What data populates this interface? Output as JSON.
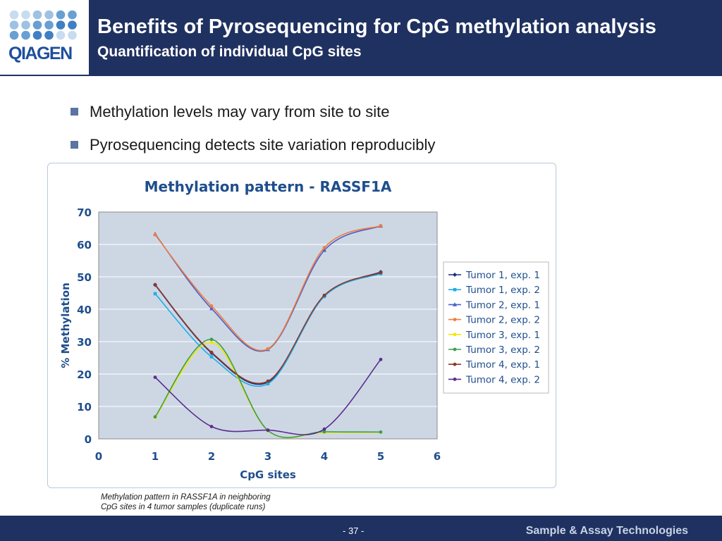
{
  "header": {
    "logo_text": "QIAGEN",
    "title": "Benefits of Pyrosequencing for CpG methylation analysis",
    "subtitle": "Quantification of individual CpG sites"
  },
  "bullets": [
    "Methylation levels may vary from site to site",
    "Pyrosequencing detects site variation reproducibly"
  ],
  "caption": {
    "line1": "Methylation pattern in RASSF1A in neighboring",
    "line2": "CpG sites in 4 tumor samples (duplicate runs)"
  },
  "footer": {
    "page": "- 37 -",
    "brand": "Sample & Assay Technologies"
  },
  "colors": {
    "header_bg": "#1f3160",
    "plot_bg": "#cdd7e4",
    "axis_text": "#1f4e8c"
  },
  "chart_data": {
    "type": "line",
    "title": "Methylation pattern - RASSF1A",
    "xlabel": "CpG sites",
    "ylabel": "% Methylation",
    "xlim": [
      0,
      6
    ],
    "ylim": [
      0,
      70
    ],
    "xticks": [
      0,
      1,
      2,
      3,
      4,
      5,
      6
    ],
    "yticks": [
      0,
      10,
      20,
      30,
      40,
      50,
      60,
      70
    ],
    "grid": true,
    "legend_position": "right",
    "x": [
      1,
      2,
      3,
      4,
      5
    ],
    "series": [
      {
        "name": "Tumor 1, exp. 1",
        "color": "#1b2f80",
        "marker": "diamond",
        "values": [
          47.5,
          26.5,
          17.5,
          44.0,
          51.5
        ]
      },
      {
        "name": "Tumor 1, exp. 2",
        "color": "#1eaee8",
        "marker": "square",
        "values": [
          44.8,
          25.3,
          17.0,
          44.0,
          51.0
        ]
      },
      {
        "name": "Tumor 2, exp. 1",
        "color": "#4d5fc7",
        "marker": "triangle",
        "values": [
          63.2,
          40.2,
          27.6,
          58.2,
          65.7
        ]
      },
      {
        "name": "Tumor 2, exp. 2",
        "color": "#f07c3c",
        "marker": "circle",
        "values": [
          63.0,
          41.0,
          27.8,
          59.0,
          65.8
        ]
      },
      {
        "name": "Tumor 3, exp. 1",
        "color": "#f2e600",
        "marker": "circle",
        "values": [
          6.5,
          29.8,
          2.5,
          2.0,
          2.0
        ]
      },
      {
        "name": "Tumor 3, exp. 2",
        "color": "#3e9e52",
        "marker": "circle",
        "values": [
          6.8,
          30.7,
          2.6,
          2.2,
          2.1
        ]
      },
      {
        "name": "Tumor 4, exp. 1",
        "color": "#8a3a2a",
        "marker": "circle",
        "values": [
          47.6,
          26.7,
          17.8,
          44.3,
          51.3
        ]
      },
      {
        "name": "Tumor 4, exp. 2",
        "color": "#5a2d8e",
        "marker": "circle",
        "values": [
          19.0,
          3.8,
          2.7,
          3.0,
          24.5
        ]
      }
    ]
  }
}
